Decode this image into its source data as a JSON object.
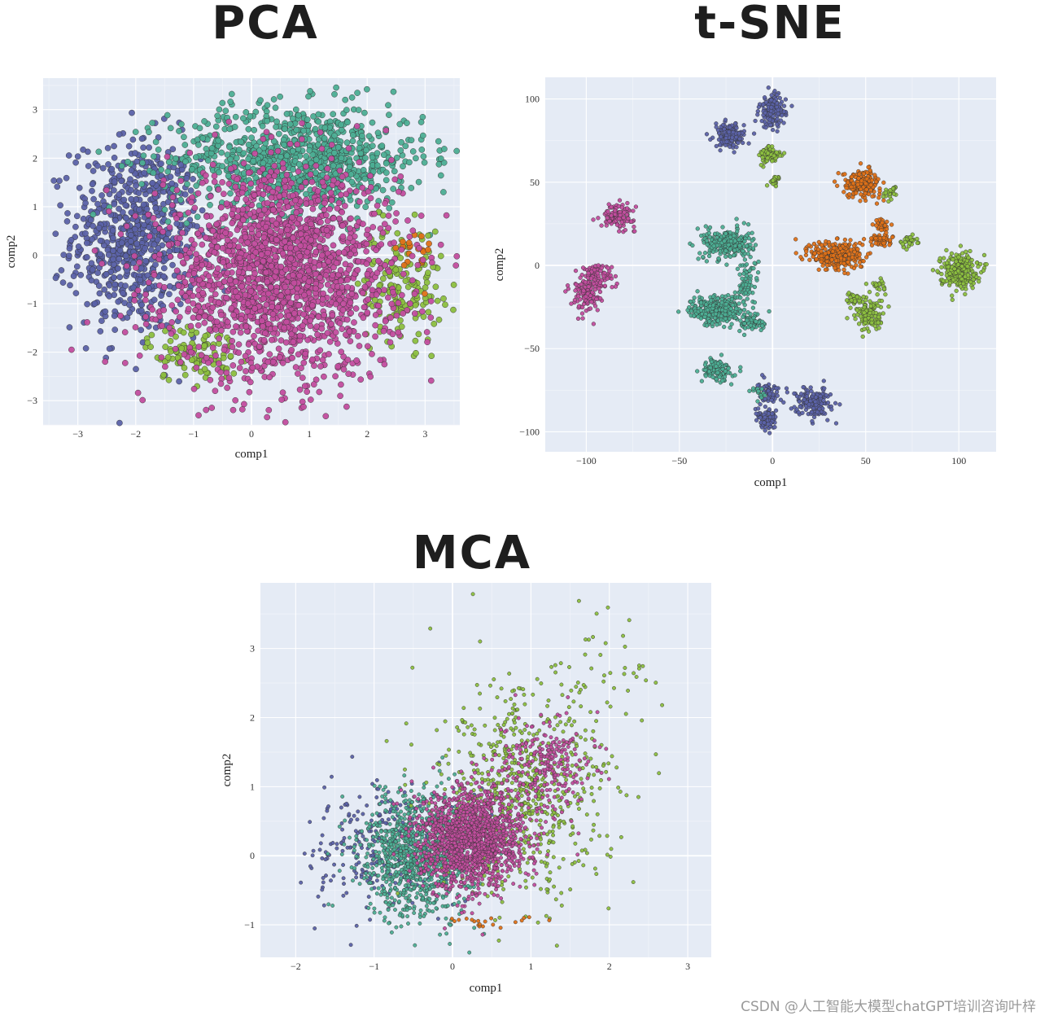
{
  "watermark": "CSDN @人工智能大模型chatGPT培训咨询叶梓",
  "colors": {
    "blue": "#5b62a8",
    "teal": "#4cae94",
    "pink": "#c24d9e",
    "olive": "#8cbf3f",
    "orange": "#df7117",
    "background": "#e5ebf5"
  },
  "chart_data": [
    {
      "type": "scatter",
      "title": "PCA",
      "xlabel": "comp1",
      "ylabel": "comp2",
      "xlim": [
        -3.6,
        3.6
      ],
      "ylim": [
        -3.5,
        3.65
      ],
      "xticks": [
        -3,
        -2,
        -1,
        0,
        1,
        2,
        3
      ],
      "yticks": [
        -3,
        -2,
        -1,
        0,
        1,
        2,
        3
      ],
      "grid": true,
      "clusters": [
        {
          "color": "blue",
          "cx": -2.0,
          "cy": 0.4,
          "sx": 0.55,
          "sy": 1.0,
          "n": 700
        },
        {
          "color": "teal",
          "cx": 0.8,
          "cy": 2.0,
          "sx": 1.1,
          "sy": 0.55,
          "n": 900
        },
        {
          "color": "olive",
          "cx": 2.6,
          "cy": -0.6,
          "sx": 0.35,
          "sy": 0.6,
          "n": 160
        },
        {
          "color": "olive",
          "cx": -1.0,
          "cy": -2.0,
          "sx": 0.4,
          "sy": 0.3,
          "n": 100
        },
        {
          "color": "orange",
          "cx": 2.8,
          "cy": 0.0,
          "sx": 0.15,
          "sy": 0.3,
          "n": 20
        },
        {
          "color": "pink",
          "cx": 0.5,
          "cy": -0.4,
          "sx": 1.0,
          "sy": 1.05,
          "n": 1900
        }
      ]
    },
    {
      "type": "scatter",
      "title": "t-SNE",
      "xlabel": "comp1",
      "ylabel": "comp2",
      "xlim": [
        -122,
        120
      ],
      "ylim": [
        -112,
        113
      ],
      "xticks": [
        -100,
        -50,
        0,
        50,
        100
      ],
      "yticks": [
        -100,
        -50,
        0,
        50,
        100
      ],
      "grid": true,
      "clusters": [
        {
          "color": "blue",
          "cx": 0,
          "cy": 93,
          "sx": 3.5,
          "sy": 5,
          "n": 140
        },
        {
          "color": "blue",
          "cx": -23,
          "cy": 78,
          "sx": 4,
          "sy": 3.5,
          "n": 140
        },
        {
          "color": "olive",
          "cx": -1,
          "cy": 66,
          "sx": 3,
          "sy": 3,
          "n": 80
        },
        {
          "color": "olive",
          "cx": 1,
          "cy": 51,
          "sx": 1.5,
          "sy": 1.5,
          "n": 25
        },
        {
          "color": "orange",
          "cx": 48,
          "cy": 49,
          "sx": 5,
          "sy": 4,
          "n": 180
        },
        {
          "color": "olive",
          "cx": 64,
          "cy": 44,
          "sx": 2,
          "sy": 2,
          "n": 25
        },
        {
          "color": "pink",
          "cx": -83,
          "cy": 30,
          "sx": 4.5,
          "sy": 3.5,
          "n": 110
        },
        {
          "color": "orange",
          "cx": 59,
          "cy": 24,
          "sx": 2,
          "sy": 2,
          "n": 30
        },
        {
          "color": "orange",
          "cx": 58,
          "cy": 15,
          "sx": 3,
          "sy": 2,
          "n": 45
        },
        {
          "color": "olive",
          "cx": 73,
          "cy": 15,
          "sx": 2.5,
          "sy": 2,
          "n": 35
        },
        {
          "color": "teal",
          "cx": -24,
          "cy": 13,
          "sx": 6.5,
          "sy": 4.5,
          "n": 260
        },
        {
          "color": "orange",
          "cx": 35,
          "cy": 6,
          "sx": 7,
          "sy": 4.5,
          "n": 280
        },
        {
          "color": "olive",
          "cx": 100,
          "cy": -3,
          "sx": 5,
          "sy": 5,
          "n": 260
        },
        {
          "color": "pink",
          "cx": -95,
          "cy": -6,
          "sx": 5,
          "sy": 4,
          "n": 90
        },
        {
          "color": "pink",
          "cx": -100,
          "cy": -18,
          "sx": 4,
          "sy": 5,
          "n": 110
        },
        {
          "color": "teal",
          "cx": -14,
          "cy": -10,
          "sx": 3,
          "sy": 7,
          "n": 70
        },
        {
          "color": "teal",
          "cx": -30,
          "cy": -27,
          "sx": 7,
          "sy": 4.5,
          "n": 280
        },
        {
          "color": "teal",
          "cx": -10,
          "cy": -34,
          "sx": 3.5,
          "sy": 3,
          "n": 70
        },
        {
          "color": "olive",
          "cx": 44,
          "cy": -20,
          "sx": 3,
          "sy": 2,
          "n": 30
        },
        {
          "color": "olive",
          "cx": 52,
          "cy": -30,
          "sx": 4,
          "sy": 5,
          "n": 120
        },
        {
          "color": "olive",
          "cx": 58,
          "cy": -13,
          "sx": 2,
          "sy": 2,
          "n": 20
        },
        {
          "color": "teal",
          "cx": -30,
          "cy": -63,
          "sx": 4,
          "sy": 3.5,
          "n": 110
        },
        {
          "color": "blue",
          "cx": -2,
          "cy": -76,
          "sx": 3,
          "sy": 3,
          "n": 60
        },
        {
          "color": "blue",
          "cx": 22,
          "cy": -82,
          "sx": 4.5,
          "sy": 4.5,
          "n": 160
        },
        {
          "color": "blue",
          "cx": -3,
          "cy": -93,
          "sx": 3,
          "sy": 3,
          "n": 90
        },
        {
          "color": "teal",
          "cx": -8,
          "cy": -77,
          "sx": 2,
          "sy": 2,
          "n": 15
        }
      ]
    },
    {
      "type": "scatter",
      "title": "MCA",
      "xlabel": "comp1",
      "ylabel": "comp2",
      "xlim": [
        -2.45,
        3.3
      ],
      "ylim": [
        -1.47,
        3.95
      ],
      "xticks": [
        -2,
        -1,
        0,
        1,
        2,
        3
      ],
      "yticks": [
        -1,
        0,
        1,
        2,
        3
      ],
      "grid": true,
      "clusters": [
        {
          "color": "blue",
          "cx": -0.9,
          "cy": 0.1,
          "sx": 0.45,
          "sy": 0.45,
          "n": 280
        },
        {
          "color": "teal",
          "cx": -0.45,
          "cy": 0.0,
          "sx": 0.35,
          "sy": 0.45,
          "n": 900
        },
        {
          "color": "olive",
          "cx": 0.9,
          "cy": 0.9,
          "sx": 0.55,
          "sy": 0.75,
          "n": 650
        },
        {
          "color": "pink",
          "cx": 0.25,
          "cy": 0.25,
          "sx": 0.32,
          "sy": 0.35,
          "n": 1500
        },
        {
          "color": "pink",
          "cx": 1.2,
          "cy": 1.3,
          "sx": 0.3,
          "sy": 0.35,
          "n": 250
        },
        {
          "color": "olive",
          "cx": 2.0,
          "cy": 2.7,
          "sx": 0.4,
          "sy": 0.5,
          "n": 40
        },
        {
          "color": "orange",
          "cx": 0.5,
          "cy": -0.95,
          "sx": 0.3,
          "sy": 0.06,
          "n": 20
        }
      ]
    }
  ]
}
